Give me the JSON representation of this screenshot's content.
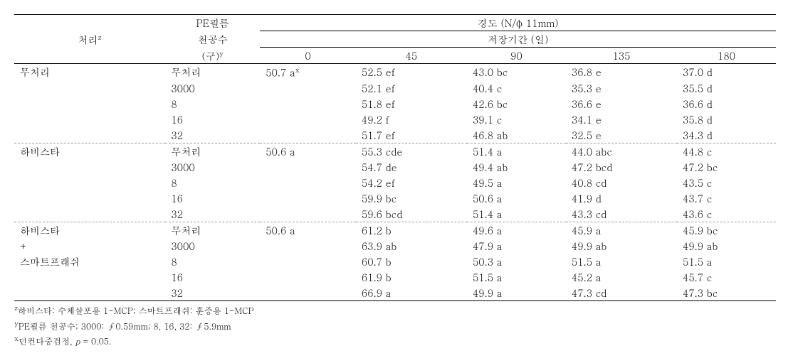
{
  "header": {
    "col_treatment": "처리",
    "sup_treatment": "z",
    "col_pe_line1": "PE필름",
    "col_pe_line2": "천공수",
    "col_pe_line3": "(구)",
    "sup_pe": "y",
    "col_hardness": "경도 (N/φ 11mm)",
    "col_period": "저장기간 (일)",
    "days": [
      "0",
      "45",
      "90",
      "135",
      "180"
    ]
  },
  "sup_x": "x",
  "groups": [
    {
      "name": "무처리",
      "rows": [
        {
          "pe": "무처리",
          "d0": "50.7  a",
          "d45": "52.5  ef",
          "d90": "43.0  bc",
          "d135": "36.8  e",
          "d180": "37.0  d"
        },
        {
          "pe": "3000",
          "d0": "",
          "d45": "52.1  ef",
          "d90": "40.4  c",
          "d135": "35.3  e",
          "d180": "35.5  d"
        },
        {
          "pe": "8",
          "d0": "",
          "d45": "51.8  ef",
          "d90": "42.6  bc",
          "d135": "36.6  e",
          "d180": "36.6  d"
        },
        {
          "pe": "16",
          "d0": "",
          "d45": "49.2  f",
          "d90": "39.1  c",
          "d135": "34.1  e",
          "d180": "35.8  d"
        },
        {
          "pe": "32",
          "d0": "",
          "d45": "51.7  ef",
          "d90": "46.8  ab",
          "d135": "32.5  e",
          "d180": "34.3  d"
        }
      ]
    },
    {
      "name": "하비스타",
      "rows": [
        {
          "pe": "무처리",
          "d0": "50.6  a",
          "d45": "55.3  cde",
          "d90": "51.4  a",
          "d135": "44.0  abc",
          "d180": "44.8  c"
        },
        {
          "pe": "3000",
          "d0": "",
          "d45": "54.7  de",
          "d90": "49.4  ab",
          "d135": "47.2  bcd",
          "d180": "47.2  bc"
        },
        {
          "pe": "8",
          "d0": "",
          "d45": "54.2  ef",
          "d90": "49.5  a",
          "d135": "40.8  cd",
          "d180": "43.5  c"
        },
        {
          "pe": "16",
          "d0": "",
          "d45": "59.9  bc",
          "d90": "50.6  a",
          "d135": "41.9  d",
          "d180": "43.7  c"
        },
        {
          "pe": "32",
          "d0": "",
          "d45": "59.6  bcd",
          "d90": "51.4  a",
          "d135": "43.3  cd",
          "d180": "43.6  c"
        }
      ]
    },
    {
      "name_lines": [
        "하비스타",
        "+",
        "스마트프래쉬"
      ],
      "rows": [
        {
          "pe": "무처리",
          "d0": "50.6  a",
          "d45": "61.2  b",
          "d90": "49.6  a",
          "d135": "45.9  a",
          "d180": "45.9  bc"
        },
        {
          "pe": "3000",
          "d0": "",
          "d45": "63.9  ab",
          "d90": "47.9  a",
          "d135": "49.9  ab",
          "d180": "49.9  ab"
        },
        {
          "pe": "8",
          "d0": "",
          "d45": "60.7  b",
          "d90": "50.3  a",
          "d135": "51.5  a",
          "d180": "51.5  a"
        },
        {
          "pe": "16",
          "d0": "",
          "d45": "61.9  b",
          "d90": "51.5  a",
          "d135": "45.2  a",
          "d180": "45.7  c"
        },
        {
          "pe": "32",
          "d0": "",
          "d45": "66.9  a",
          "d90": "49.9  a",
          "d135": "47.3  cd",
          "d180": "47.3  bc"
        }
      ]
    }
  ],
  "footnotes": {
    "z": "하비스타: 수체살포용 1-MCP;  스마트프래쉬: 훈증용 1-MCP",
    "y": "PE필름 천공수;  3000:  ∮0.59mm;  8, 16, 32:  ∮5.9mm",
    "x_prefix": "던컨다중검정,  ",
    "x_p": "p",
    "x_suffix": " = 0.05."
  }
}
